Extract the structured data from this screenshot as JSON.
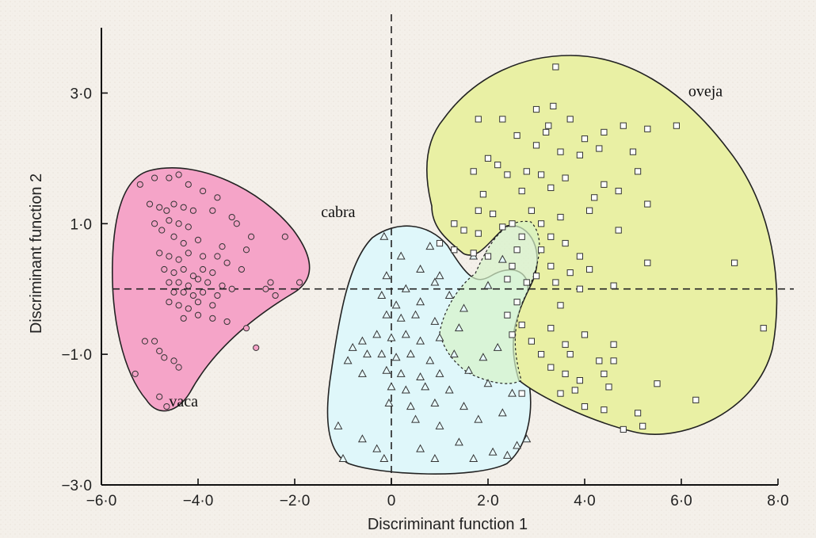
{
  "chart_data": {
    "type": "scatter",
    "title": "",
    "xlabel": "Discriminant function 1",
    "ylabel": "Discriminant function 2",
    "xlim": [
      -6.0,
      8.0
    ],
    "ylim": [
      -3.0,
      4.0
    ],
    "xticks": [
      {
        "value": -6,
        "label": "−6·0"
      },
      {
        "value": -4,
        "label": "−4·0"
      },
      {
        "value": -2,
        "label": "−2·0"
      },
      {
        "value": 0,
        "label": "0"
      },
      {
        "value": 2,
        "label": "2·0"
      },
      {
        "value": 4,
        "label": "4·0"
      },
      {
        "value": 6,
        "label": "6·0"
      },
      {
        "value": 8,
        "label": "8·0"
      }
    ],
    "yticks": [
      {
        "value": 3,
        "label": "3·0"
      },
      {
        "value": 1,
        "label": "1·0"
      },
      {
        "value": -1,
        "label": "−1·0"
      },
      {
        "value": -3,
        "label": "−3·0"
      }
    ],
    "reference_lines": {
      "x": 0,
      "y": 0,
      "style": "dashed"
    },
    "grid": false,
    "series": [
      {
        "name": "vaca",
        "marker": "circle",
        "fill": "#f3a2c6",
        "points": [
          [
            -5.2,
            1.6
          ],
          [
            -4.9,
            1.7
          ],
          [
            -4.6,
            1.7
          ],
          [
            -4.4,
            1.75
          ],
          [
            -4.2,
            1.6
          ],
          [
            -3.9,
            1.5
          ],
          [
            -3.6,
            1.4
          ],
          [
            -5.0,
            1.3
          ],
          [
            -4.8,
            1.25
          ],
          [
            -4.65,
            1.2
          ],
          [
            -4.5,
            1.3
          ],
          [
            -4.3,
            1.25
          ],
          [
            -4.1,
            1.2
          ],
          [
            -3.7,
            1.2
          ],
          [
            -3.3,
            1.1
          ],
          [
            -4.9,
            1.0
          ],
          [
            -4.6,
            1.05
          ],
          [
            -4.4,
            1.0
          ],
          [
            -4.2,
            0.95
          ],
          [
            -3.2,
            1.0
          ],
          [
            -2.9,
            0.8
          ],
          [
            -4.75,
            0.9
          ],
          [
            -4.5,
            0.8
          ],
          [
            -4.3,
            0.7
          ],
          [
            -4.0,
            0.75
          ],
          [
            -3.5,
            0.65
          ],
          [
            -3.0,
            0.6
          ],
          [
            -2.2,
            0.8
          ],
          [
            -4.8,
            0.55
          ],
          [
            -4.6,
            0.5
          ],
          [
            -4.4,
            0.45
          ],
          [
            -4.2,
            0.55
          ],
          [
            -3.9,
            0.5
          ],
          [
            -3.6,
            0.5
          ],
          [
            -3.4,
            0.4
          ],
          [
            -4.7,
            0.3
          ],
          [
            -4.5,
            0.25
          ],
          [
            -4.3,
            0.3
          ],
          [
            -4.1,
            0.2
          ],
          [
            -3.9,
            0.3
          ],
          [
            -3.7,
            0.25
          ],
          [
            -3.1,
            0.3
          ],
          [
            -4.6,
            0.1
          ],
          [
            -4.4,
            0.1
          ],
          [
            -4.2,
            0.05
          ],
          [
            -4.0,
            0.15
          ],
          [
            -3.8,
            0.1
          ],
          [
            -3.5,
            0.05
          ],
          [
            -2.5,
            0.1
          ],
          [
            -4.5,
            -0.05
          ],
          [
            -4.3,
            -0.05
          ],
          [
            -4.1,
            -0.1
          ],
          [
            -3.9,
            -0.05
          ],
          [
            -3.6,
            -0.1
          ],
          [
            -3.3,
            0.0
          ],
          [
            -2.6,
            0.0
          ],
          [
            -4.6,
            -0.2
          ],
          [
            -4.4,
            -0.25
          ],
          [
            -4.2,
            -0.3
          ],
          [
            -4.0,
            -0.2
          ],
          [
            -3.7,
            -0.25
          ],
          [
            -2.4,
            -0.1
          ],
          [
            -1.9,
            0.1
          ],
          [
            -4.3,
            -0.45
          ],
          [
            -4.0,
            -0.4
          ],
          [
            -3.7,
            -0.45
          ],
          [
            -3.4,
            -0.5
          ],
          [
            -3.0,
            -0.6
          ],
          [
            -2.8,
            -0.9
          ],
          [
            -5.1,
            -0.8
          ],
          [
            -4.9,
            -0.8
          ],
          [
            -4.8,
            -0.95
          ],
          [
            -4.7,
            -1.05
          ],
          [
            -4.5,
            -1.1
          ],
          [
            -4.4,
            -1.2
          ],
          [
            -5.3,
            -1.3
          ],
          [
            -4.8,
            -1.65
          ],
          [
            -4.65,
            -1.8
          ]
        ]
      },
      {
        "name": "cabra",
        "marker": "triangle",
        "fill": "#e8fcff",
        "points": [
          [
            -0.15,
            0.8
          ],
          [
            0.2,
            0.5
          ],
          [
            0.8,
            0.65
          ],
          [
            1.7,
            0.5
          ],
          [
            2.3,
            0.45
          ],
          [
            0.6,
            0.3
          ],
          [
            1.0,
            0.2
          ],
          [
            -0.1,
            0.2
          ],
          [
            0.3,
            0.0
          ],
          [
            0.9,
            0.1
          ],
          [
            2.0,
            0.05
          ],
          [
            -0.2,
            -0.1
          ],
          [
            0.1,
            -0.25
          ],
          [
            0.6,
            -0.2
          ],
          [
            1.2,
            -0.1
          ],
          [
            -0.1,
            -0.4
          ],
          [
            0.2,
            -0.45
          ],
          [
            0.5,
            -0.4
          ],
          [
            0.9,
            -0.5
          ],
          [
            1.5,
            -0.3
          ],
          [
            -0.8,
            -0.9
          ],
          [
            -0.6,
            -0.8
          ],
          [
            -0.3,
            -0.7
          ],
          [
            0.0,
            -0.75
          ],
          [
            0.3,
            -0.7
          ],
          [
            0.6,
            -0.8
          ],
          [
            1.0,
            -0.75
          ],
          [
            1.4,
            -0.6
          ],
          [
            -0.9,
            -1.1
          ],
          [
            -0.5,
            -1.0
          ],
          [
            -0.2,
            -1.0
          ],
          [
            0.1,
            -1.05
          ],
          [
            0.4,
            -1.0
          ],
          [
            0.8,
            -1.1
          ],
          [
            1.3,
            -1.0
          ],
          [
            1.9,
            -1.05
          ],
          [
            2.2,
            -0.9
          ],
          [
            -0.6,
            -1.3
          ],
          [
            -0.1,
            -1.25
          ],
          [
            0.2,
            -1.3
          ],
          [
            0.6,
            -1.35
          ],
          [
            1.0,
            -1.3
          ],
          [
            1.6,
            -1.25
          ],
          [
            0.0,
            -1.5
          ],
          [
            0.3,
            -1.55
          ],
          [
            0.7,
            -1.5
          ],
          [
            1.2,
            -1.55
          ],
          [
            2.0,
            -1.45
          ],
          [
            2.5,
            -1.6
          ],
          [
            -0.05,
            -1.75
          ],
          [
            0.4,
            -1.8
          ],
          [
            0.9,
            -1.75
          ],
          [
            1.5,
            -1.8
          ],
          [
            0.5,
            -2.0
          ],
          [
            1.0,
            -2.1
          ],
          [
            1.8,
            -2.0
          ],
          [
            2.3,
            -1.9
          ],
          [
            -1.1,
            -2.1
          ],
          [
            -0.6,
            -2.3
          ],
          [
            -0.3,
            -2.45
          ],
          [
            0.6,
            -2.45
          ],
          [
            1.4,
            -2.35
          ],
          [
            2.1,
            -2.5
          ],
          [
            2.6,
            -2.4
          ],
          [
            2.8,
            -2.3
          ],
          [
            -1.0,
            -2.6
          ],
          [
            -0.15,
            -2.6
          ],
          [
            0.9,
            -2.6
          ],
          [
            1.7,
            -2.6
          ],
          [
            2.4,
            -2.55
          ]
        ]
      },
      {
        "name": "oveja",
        "marker": "square",
        "fill": "#ffffff",
        "points": [
          [
            3.4,
            3.4
          ],
          [
            3.0,
            2.75
          ],
          [
            3.35,
            2.8
          ],
          [
            1.8,
            2.6
          ],
          [
            2.3,
            2.6
          ],
          [
            3.2,
            2.4
          ],
          [
            3.7,
            2.6
          ],
          [
            4.8,
            2.5
          ],
          [
            5.3,
            2.45
          ],
          [
            5.9,
            2.5
          ],
          [
            2.6,
            2.35
          ],
          [
            4.0,
            2.3
          ],
          [
            4.4,
            2.4
          ],
          [
            3.25,
            2.5
          ],
          [
            3.0,
            2.2
          ],
          [
            3.5,
            2.1
          ],
          [
            3.9,
            2.05
          ],
          [
            4.3,
            2.15
          ],
          [
            5.0,
            2.1
          ],
          [
            2.0,
            2.0
          ],
          [
            2.2,
            1.9
          ],
          [
            1.7,
            1.8
          ],
          [
            2.4,
            1.75
          ],
          [
            2.8,
            1.8
          ],
          [
            3.1,
            1.75
          ],
          [
            3.6,
            1.7
          ],
          [
            4.4,
            1.6
          ],
          [
            5.1,
            1.8
          ],
          [
            1.9,
            1.45
          ],
          [
            2.7,
            1.5
          ],
          [
            3.3,
            1.55
          ],
          [
            4.2,
            1.4
          ],
          [
            4.7,
            1.5
          ],
          [
            5.3,
            1.3
          ],
          [
            1.8,
            1.2
          ],
          [
            2.1,
            1.15
          ],
          [
            2.5,
            1.0
          ],
          [
            2.9,
            1.2
          ],
          [
            3.1,
            1.0
          ],
          [
            3.5,
            1.1
          ],
          [
            4.1,
            1.2
          ],
          [
            1.3,
            1.0
          ],
          [
            1.5,
            0.9
          ],
          [
            1.8,
            0.85
          ],
          [
            2.3,
            0.95
          ],
          [
            2.7,
            0.8
          ],
          [
            3.3,
            0.8
          ],
          [
            3.6,
            0.7
          ],
          [
            4.7,
            0.9
          ],
          [
            1.0,
            0.7
          ],
          [
            1.3,
            0.6
          ],
          [
            1.7,
            0.55
          ],
          [
            2.0,
            0.5
          ],
          [
            2.6,
            0.6
          ],
          [
            3.1,
            0.6
          ],
          [
            3.9,
            0.5
          ],
          [
            5.3,
            0.4
          ],
          [
            2.5,
            0.35
          ],
          [
            3.3,
            0.35
          ],
          [
            3.7,
            0.25
          ],
          [
            4.1,
            0.3
          ],
          [
            7.1,
            0.4
          ],
          [
            2.4,
            0.15
          ],
          [
            2.8,
            0.1
          ],
          [
            3.0,
            0.2
          ],
          [
            3.4,
            0.1
          ],
          [
            3.9,
            0.0
          ],
          [
            4.6,
            0.05
          ],
          [
            2.6,
            -0.2
          ],
          [
            3.5,
            -0.25
          ],
          [
            2.4,
            -0.4
          ],
          [
            2.7,
            -0.55
          ],
          [
            3.3,
            -0.6
          ],
          [
            2.5,
            -0.7
          ],
          [
            4.0,
            -0.7
          ],
          [
            2.9,
            -0.8
          ],
          [
            3.6,
            -0.85
          ],
          [
            4.6,
            -0.85
          ],
          [
            7.7,
            -0.6
          ],
          [
            3.1,
            -1.0
          ],
          [
            3.7,
            -1.0
          ],
          [
            4.3,
            -1.1
          ],
          [
            4.6,
            -1.1
          ],
          [
            3.3,
            -1.2
          ],
          [
            3.6,
            -1.3
          ],
          [
            4.4,
            -1.3
          ],
          [
            3.9,
            -1.4
          ],
          [
            4.5,
            -1.5
          ],
          [
            5.5,
            -1.45
          ],
          [
            2.7,
            -1.6
          ],
          [
            3.5,
            -1.6
          ],
          [
            3.8,
            -1.55
          ],
          [
            6.3,
            -1.7
          ],
          [
            4.0,
            -1.8
          ],
          [
            4.4,
            -1.85
          ],
          [
            5.1,
            -1.9
          ],
          [
            5.2,
            -2.1
          ],
          [
            4.8,
            -2.15
          ]
        ]
      }
    ],
    "group_labels": [
      {
        "text": "vaca",
        "x": -4.3,
        "y": -1.8
      },
      {
        "text": "cabra",
        "x": -1.1,
        "y": 1.1
      },
      {
        "text": "oveja",
        "x": 6.5,
        "y": 2.95
      }
    ]
  }
}
